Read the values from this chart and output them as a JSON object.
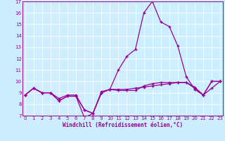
{
  "xlabel": "Windchill (Refroidissement éolien,°C)",
  "bg_color": "#cceeff",
  "line_color": "#990099",
  "grid_color": "#ffffff",
  "spine_color": "#990099",
  "xmin": 0,
  "xmax": 23,
  "ymin": 7,
  "ymax": 17,
  "series": [
    [
      8.8,
      9.4,
      9.0,
      9.0,
      8.3,
      8.7,
      8.7,
      6.8,
      7.2,
      9.0,
      9.3,
      11.0,
      12.2,
      12.8,
      16.0,
      17.0,
      15.2,
      14.8,
      13.1,
      10.4,
      9.3,
      8.8,
      10.0,
      10.0
    ],
    [
      8.8,
      9.4,
      9.0,
      9.0,
      8.3,
      8.7,
      8.7,
      7.5,
      7.2,
      9.0,
      9.3,
      9.2,
      9.2,
      9.2,
      9.6,
      9.8,
      9.9,
      9.9,
      9.9,
      9.9,
      9.5,
      8.8,
      10.0,
      10.0
    ],
    [
      8.8,
      9.4,
      9.0,
      9.0,
      8.5,
      8.8,
      8.8,
      7.5,
      7.2,
      9.1,
      9.3,
      9.3,
      9.3,
      9.4,
      9.5,
      9.6,
      9.7,
      9.8,
      9.9,
      9.9,
      9.4,
      8.8,
      9.4,
      10.0
    ]
  ],
  "xlabel_fontsize": 5.5,
  "tick_fontsize": 5.0,
  "linewidth": 0.9,
  "markersize": 3.5
}
